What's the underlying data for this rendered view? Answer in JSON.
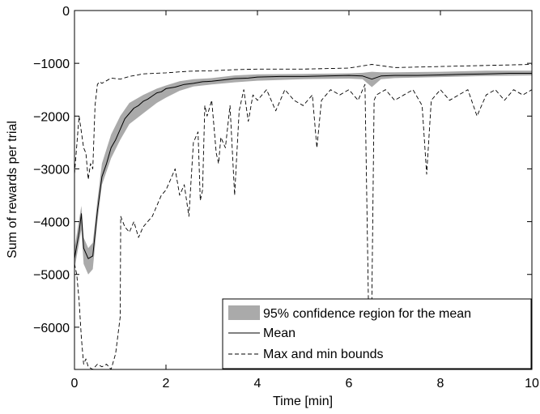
{
  "chart_data": {
    "type": "line",
    "xlabel": "Time [min]",
    "ylabel": "Sum of rewards per trial",
    "xlim": [
      0,
      10
    ],
    "ylim": [
      -6800,
      0
    ],
    "xticks": [
      0,
      2,
      4,
      6,
      8,
      10
    ],
    "yticks": [
      0,
      -1000,
      -2000,
      -3000,
      -4000,
      -5000,
      -6000
    ],
    "xtick_labels": [
      "0",
      "2",
      "4",
      "6",
      "8",
      "10"
    ],
    "ytick_labels": [
      "0",
      "−1000",
      "−2000",
      "−3000",
      "−4000",
      "−5000",
      "−6000"
    ],
    "grid": false,
    "legend_position": "bottom-right",
    "legend": [
      {
        "label": "95% confidence region for the mean",
        "style": "band",
        "color": "#aaaaaa"
      },
      {
        "label": "Mean",
        "style": "solid",
        "color": "#000000"
      },
      {
        "label": "Max and min bounds",
        "style": "dashed",
        "color": "#000000"
      }
    ],
    "series": [
      {
        "name": "95% confidence region for the mean",
        "kind": "band",
        "x": [
          0,
          0.15,
          0.2,
          0.3,
          0.4,
          0.5,
          0.6,
          0.8,
          1.0,
          1.2,
          1.5,
          1.8,
          2.0,
          2.3,
          2.6,
          3.0,
          3.5,
          4.0,
          5.0,
          6.0,
          6.3,
          6.5,
          6.7,
          7.0,
          8.0,
          9.0,
          10.0
        ],
        "lower": [
          -4900,
          -4150,
          -4800,
          -5000,
          -4900,
          -4000,
          -3300,
          -2800,
          -2450,
          -2150,
          -1950,
          -1750,
          -1650,
          -1520,
          -1440,
          -1400,
          -1360,
          -1330,
          -1300,
          -1290,
          -1300,
          -1450,
          -1300,
          -1280,
          -1260,
          -1240,
          -1230
        ],
        "upper": [
          -4500,
          -3700,
          -4300,
          -4500,
          -4400,
          -3600,
          -2900,
          -2350,
          -2000,
          -1750,
          -1600,
          -1480,
          -1420,
          -1340,
          -1300,
          -1280,
          -1230,
          -1210,
          -1200,
          -1190,
          -1180,
          -1160,
          -1170,
          -1170,
          -1160,
          -1140,
          -1140
        ]
      },
      {
        "name": "Mean",
        "kind": "line",
        "style": "solid",
        "x": [
          0,
          0.1,
          0.15,
          0.2,
          0.3,
          0.4,
          0.5,
          0.6,
          0.7,
          0.8,
          0.9,
          1.0,
          1.1,
          1.2,
          1.3,
          1.4,
          1.5,
          1.6,
          1.7,
          1.8,
          1.9,
          2.0,
          2.2,
          2.4,
          2.6,
          2.8,
          3.0,
          3.2,
          3.5,
          3.8,
          4.0,
          4.5,
          5.0,
          5.5,
          6.0,
          6.3,
          6.5,
          6.7,
          7.0,
          7.5,
          8.0,
          8.5,
          9.0,
          9.5,
          10.0
        ],
        "y": [
          -4700,
          -4200,
          -3850,
          -4500,
          -4700,
          -4650,
          -3800,
          -3150,
          -2900,
          -2600,
          -2450,
          -2250,
          -2050,
          -1950,
          -1850,
          -1800,
          -1720,
          -1680,
          -1620,
          -1560,
          -1540,
          -1480,
          -1450,
          -1400,
          -1380,
          -1350,
          -1340,
          -1320,
          -1290,
          -1280,
          -1260,
          -1250,
          -1250,
          -1240,
          -1230,
          -1240,
          -1300,
          -1240,
          -1230,
          -1230,
          -1220,
          -1210,
          -1200,
          -1190,
          -1190
        ]
      },
      {
        "name": "Max and min bounds (max)",
        "kind": "line",
        "style": "dashed",
        "x": [
          0,
          0.1,
          0.15,
          0.2,
          0.25,
          0.3,
          0.35,
          0.4,
          0.45,
          0.5,
          0.55,
          0.6,
          0.8,
          1.0,
          1.2,
          1.5,
          2.0,
          2.5,
          3.0,
          3.5,
          4.0,
          5.0,
          6.0,
          6.5,
          7.0,
          8.0,
          9.0,
          10.0
        ],
        "y": [
          -3100,
          -2000,
          -2300,
          -2600,
          -2700,
          -3200,
          -2900,
          -3000,
          -1800,
          -1400,
          -1350,
          -1380,
          -1280,
          -1300,
          -1250,
          -1200,
          -1180,
          -1150,
          -1140,
          -1120,
          -1110,
          -1110,
          -1090,
          -1020,
          -1080,
          -1060,
          -1040,
          -1020
        ]
      },
      {
        "name": "Max and min bounds (min)",
        "kind": "line",
        "style": "dashed",
        "x": [
          0,
          0.05,
          0.1,
          0.15,
          0.2,
          0.25,
          0.3,
          0.4,
          0.5,
          0.6,
          0.7,
          0.8,
          0.9,
          1.0,
          1.01,
          1.1,
          1.2,
          1.3,
          1.4,
          1.5,
          1.6,
          1.7,
          1.8,
          1.9,
          2.0,
          2.1,
          2.2,
          2.3,
          2.4,
          2.5,
          2.6,
          2.7,
          2.75,
          2.8,
          2.85,
          2.9,
          3.0,
          3.1,
          3.15,
          3.2,
          3.3,
          3.4,
          3.5,
          3.6,
          3.7,
          3.8,
          3.9,
          4.0,
          4.2,
          4.4,
          4.6,
          4.8,
          5.0,
          5.2,
          5.3,
          5.4,
          5.6,
          5.8,
          6.0,
          6.2,
          6.35,
          6.45,
          6.5,
          6.55,
          6.6,
          6.8,
          7.0,
          7.2,
          7.4,
          7.6,
          7.7,
          7.8,
          8.0,
          8.2,
          8.4,
          8.6,
          8.8,
          9.0,
          9.2,
          9.4,
          9.6,
          9.8,
          10.0
        ],
        "y": [
          -4800,
          -5000,
          -5500,
          -6200,
          -6700,
          -6600,
          -6750,
          -6800,
          -6700,
          -6750,
          -6700,
          -6800,
          -6500,
          -5800,
          -3900,
          -4100,
          -4200,
          -4000,
          -4300,
          -4100,
          -4000,
          -3900,
          -3700,
          -3500,
          -3400,
          -3200,
          -3000,
          -3500,
          -3300,
          -3900,
          -2500,
          -2300,
          -3600,
          -3400,
          -1800,
          -2000,
          -1700,
          -2700,
          -2900,
          -2400,
          -2600,
          -1800,
          -3500,
          -1900,
          -1500,
          -2100,
          -1600,
          -1700,
          -1500,
          -1900,
          -1500,
          -1700,
          -1800,
          -1600,
          -2600,
          -1700,
          -1500,
          -1600,
          -1500,
          -1700,
          -1400,
          -6800,
          -5500,
          -1700,
          -1600,
          -1500,
          -1700,
          -1600,
          -1500,
          -1800,
          -3100,
          -1700,
          -1500,
          -1700,
          -1600,
          -1500,
          -2000,
          -1600,
          -1500,
          -1700,
          -1500,
          -1600,
          -1500
        ]
      }
    ]
  }
}
